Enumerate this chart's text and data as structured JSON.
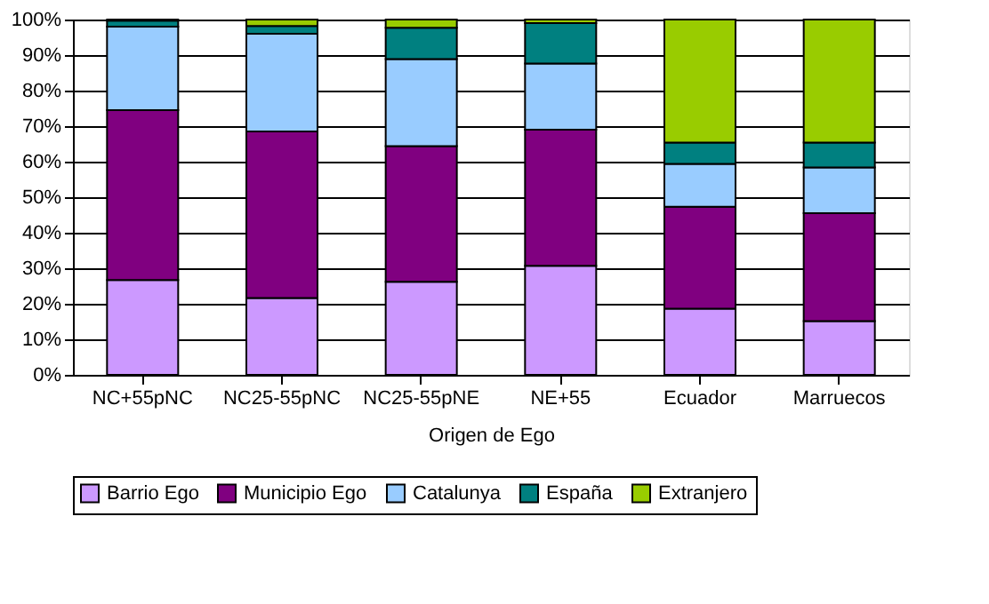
{
  "chart_data": {
    "type": "bar",
    "stacked": true,
    "xlabel": "Origen de Ego",
    "categories": [
      "NC+55pNC",
      "NC25-55pNC",
      "NC25-55pNE",
      "NE+55",
      "Ecuador",
      "Marruecos"
    ],
    "series": [
      {
        "name": "Barrio Ego",
        "color": "#cc99ff",
        "values": [
          26.7,
          21.6,
          26.2,
          30.7,
          18.6,
          15.1
        ]
      },
      {
        "name": "Municipio Ego",
        "color": "#800080",
        "values": [
          47.8,
          46.9,
          38.2,
          38.3,
          28.7,
          30.4
        ]
      },
      {
        "name": "Catalunya",
        "color": "#99ccff",
        "values": [
          23.5,
          27.5,
          24.5,
          18.6,
          12.1,
          12.9
        ]
      },
      {
        "name": "España",
        "color": "#008080",
        "values": [
          1.7,
          2.2,
          8.8,
          11.4,
          6.0,
          7.0
        ]
      },
      {
        "name": "Extranjero",
        "color": "#99cc00",
        "values": [
          0.3,
          1.8,
          2.3,
          1.0,
          34.6,
          34.6
        ]
      }
    ],
    "ylim": [
      0,
      100
    ],
    "yticks": [
      {
        "value": 0,
        "label": "0%"
      },
      {
        "value": 10,
        "label": "10%"
      },
      {
        "value": 20,
        "label": "20%"
      },
      {
        "value": 30,
        "label": "30%"
      },
      {
        "value": 40,
        "label": "40%"
      },
      {
        "value": 50,
        "label": "50%"
      },
      {
        "value": 60,
        "label": "60%"
      },
      {
        "value": 70,
        "label": "70%"
      },
      {
        "value": 80,
        "label": "80%"
      },
      {
        "value": 90,
        "label": "90%"
      },
      {
        "value": 100,
        "label": "100%"
      }
    ],
    "grid": "y",
    "legend": "bottom"
  }
}
